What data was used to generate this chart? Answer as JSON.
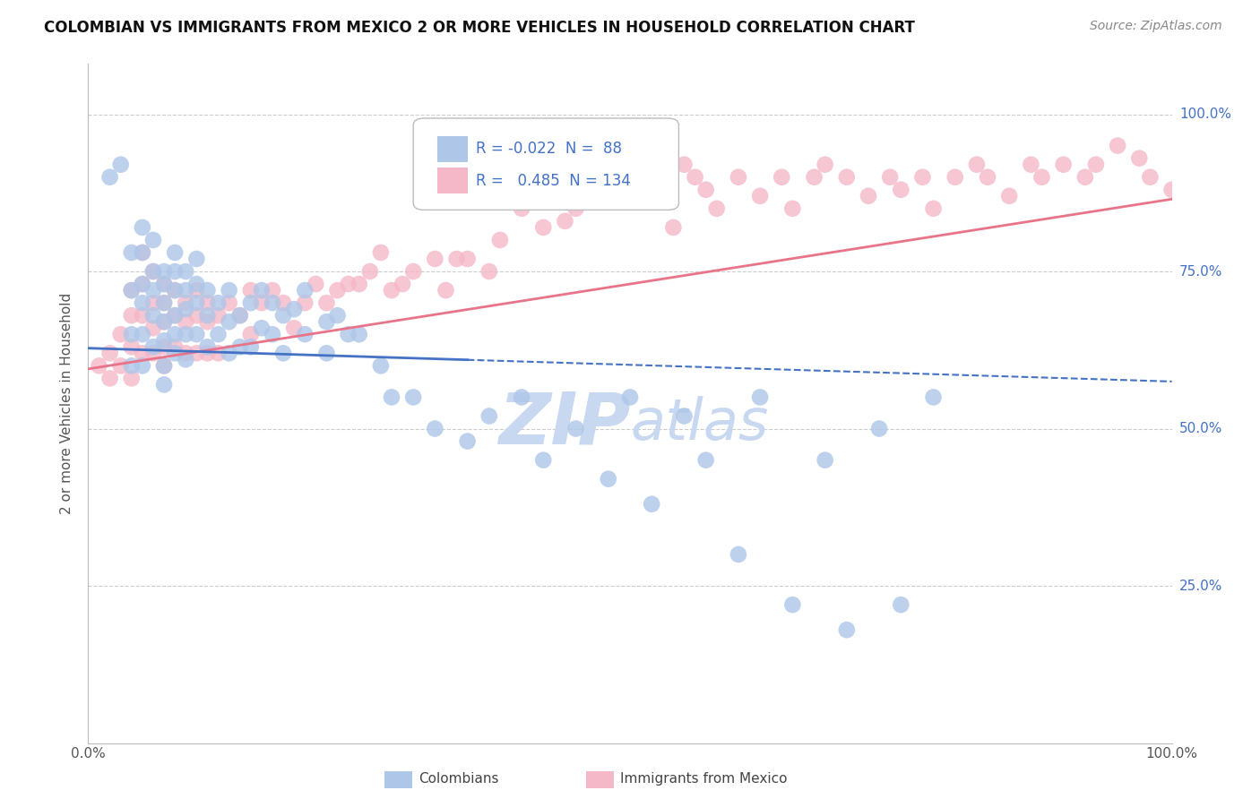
{
  "title": "COLOMBIAN VS IMMIGRANTS FROM MEXICO 2 OR MORE VEHICLES IN HOUSEHOLD CORRELATION CHART",
  "source": "Source: ZipAtlas.com",
  "ylabel": "2 or more Vehicles in Household",
  "yticks": [
    "25.0%",
    "50.0%",
    "75.0%",
    "100.0%"
  ],
  "ytick_vals": [
    0.25,
    0.5,
    0.75,
    1.0
  ],
  "legend_blue_r": "-0.022",
  "legend_blue_n": "88",
  "legend_pink_r": "0.485",
  "legend_pink_n": "134",
  "blue_color": "#aec6e8",
  "pink_color": "#f4b8c8",
  "blue_line_color": "#4472c4",
  "pink_line_color": "#e8748a",
  "tick_label_color": "#4472c4",
  "watermark_color": "#c8d8f0",
  "background_color": "#ffffff",
  "grid_color": "#cccccc",
  "blue_x": [
    0.02,
    0.03,
    0.04,
    0.04,
    0.04,
    0.04,
    0.05,
    0.05,
    0.05,
    0.05,
    0.05,
    0.05,
    0.06,
    0.06,
    0.06,
    0.06,
    0.06,
    0.07,
    0.07,
    0.07,
    0.07,
    0.07,
    0.07,
    0.07,
    0.08,
    0.08,
    0.08,
    0.08,
    0.08,
    0.08,
    0.09,
    0.09,
    0.09,
    0.09,
    0.09,
    0.1,
    0.1,
    0.1,
    0.1,
    0.11,
    0.11,
    0.11,
    0.12,
    0.12,
    0.13,
    0.13,
    0.13,
    0.14,
    0.14,
    0.15,
    0.15,
    0.16,
    0.16,
    0.17,
    0.17,
    0.18,
    0.18,
    0.19,
    0.2,
    0.2,
    0.22,
    0.22,
    0.23,
    0.24,
    0.25,
    0.27,
    0.28,
    0.3,
    0.32,
    0.35,
    0.37,
    0.4,
    0.42,
    0.45,
    0.48,
    0.5,
    0.52,
    0.55,
    0.57,
    0.6,
    0.62,
    0.65,
    0.68,
    0.7,
    0.73,
    0.75,
    0.78
  ],
  "blue_y": [
    0.9,
    0.92,
    0.78,
    0.72,
    0.65,
    0.6,
    0.82,
    0.78,
    0.73,
    0.7,
    0.65,
    0.6,
    0.8,
    0.75,
    0.72,
    0.68,
    0.63,
    0.75,
    0.73,
    0.7,
    0.67,
    0.64,
    0.6,
    0.57,
    0.78,
    0.75,
    0.72,
    0.68,
    0.65,
    0.62,
    0.75,
    0.72,
    0.69,
    0.65,
    0.61,
    0.77,
    0.73,
    0.7,
    0.65,
    0.72,
    0.68,
    0.63,
    0.7,
    0.65,
    0.72,
    0.67,
    0.62,
    0.68,
    0.63,
    0.7,
    0.63,
    0.72,
    0.66,
    0.7,
    0.65,
    0.68,
    0.62,
    0.69,
    0.72,
    0.65,
    0.67,
    0.62,
    0.68,
    0.65,
    0.65,
    0.6,
    0.55,
    0.55,
    0.5,
    0.48,
    0.52,
    0.55,
    0.45,
    0.5,
    0.42,
    0.55,
    0.38,
    0.52,
    0.45,
    0.3,
    0.55,
    0.22,
    0.45,
    0.18,
    0.5,
    0.22,
    0.55
  ],
  "pink_x": [
    0.01,
    0.02,
    0.02,
    0.03,
    0.03,
    0.04,
    0.04,
    0.04,
    0.04,
    0.05,
    0.05,
    0.05,
    0.05,
    0.06,
    0.06,
    0.06,
    0.06,
    0.07,
    0.07,
    0.07,
    0.07,
    0.07,
    0.08,
    0.08,
    0.08,
    0.09,
    0.09,
    0.09,
    0.1,
    0.1,
    0.1,
    0.11,
    0.11,
    0.11,
    0.12,
    0.12,
    0.13,
    0.14,
    0.15,
    0.15,
    0.16,
    0.17,
    0.18,
    0.19,
    0.2,
    0.21,
    0.22,
    0.23,
    0.24,
    0.25,
    0.26,
    0.27,
    0.28,
    0.29,
    0.3,
    0.32,
    0.33,
    0.34,
    0.35,
    0.37,
    0.38,
    0.4,
    0.42,
    0.44,
    0.45,
    0.46,
    0.47,
    0.49,
    0.5,
    0.52,
    0.54,
    0.55,
    0.56,
    0.57,
    0.58,
    0.6,
    0.62,
    0.64,
    0.65,
    0.67,
    0.68,
    0.7,
    0.72,
    0.74,
    0.75,
    0.77,
    0.78,
    0.8,
    0.82,
    0.83,
    0.85,
    0.87,
    0.88,
    0.9,
    0.92,
    0.93,
    0.95,
    0.97,
    0.98,
    1.0
  ],
  "pink_y": [
    0.6,
    0.62,
    0.58,
    0.65,
    0.6,
    0.72,
    0.68,
    0.63,
    0.58,
    0.78,
    0.73,
    0.68,
    0.62,
    0.75,
    0.7,
    0.66,
    0.62,
    0.73,
    0.7,
    0.67,
    0.63,
    0.6,
    0.72,
    0.68,
    0.63,
    0.7,
    0.67,
    0.62,
    0.72,
    0.68,
    0.62,
    0.7,
    0.67,
    0.62,
    0.68,
    0.62,
    0.7,
    0.68,
    0.72,
    0.65,
    0.7,
    0.72,
    0.7,
    0.66,
    0.7,
    0.73,
    0.7,
    0.72,
    0.73,
    0.73,
    0.75,
    0.78,
    0.72,
    0.73,
    0.75,
    0.77,
    0.72,
    0.77,
    0.77,
    0.75,
    0.8,
    0.85,
    0.82,
    0.83,
    0.85,
    0.88,
    0.9,
    0.92,
    0.88,
    0.9,
    0.82,
    0.92,
    0.9,
    0.88,
    0.85,
    0.9,
    0.87,
    0.9,
    0.85,
    0.9,
    0.92,
    0.9,
    0.87,
    0.9,
    0.88,
    0.9,
    0.85,
    0.9,
    0.92,
    0.9,
    0.87,
    0.92,
    0.9,
    0.92,
    0.9,
    0.92,
    0.95,
    0.93,
    0.9,
    0.88
  ],
  "xlim": [
    0.0,
    1.0
  ],
  "ylim": [
    0.0,
    1.08
  ],
  "blue_trend_x0": 0.0,
  "blue_trend_y0": 0.628,
  "blue_trend_x1": 1.0,
  "blue_trend_y1": 0.575,
  "pink_trend_x0": 0.0,
  "pink_trend_y0": 0.595,
  "pink_trend_x1": 1.0,
  "pink_trend_y1": 0.865
}
